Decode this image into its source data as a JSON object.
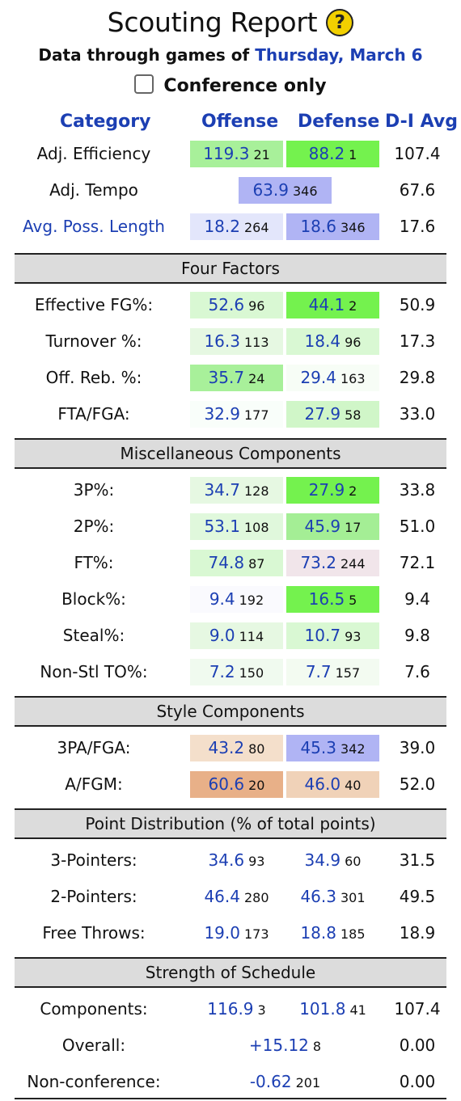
{
  "header": {
    "title": "Scouting Report",
    "help_glyph": "?",
    "subtitle_prefix": "Data through games of",
    "subtitle_date": "Thursday, March 6",
    "conference_only_label": "Conference only",
    "conference_only_checked": false
  },
  "columns": {
    "category": "Category",
    "offense": "Offense",
    "defense": "Defense",
    "avg": "D-I Avg"
  },
  "top_rows": [
    {
      "label": "Adj. Efficiency",
      "link": false,
      "o_val": "119.3",
      "o_rank": "21",
      "o_bg": "#a8f09a",
      "d_val": "88.2",
      "d_rank": "1",
      "d_bg": "#74f24e",
      "avg": "107.4"
    },
    {
      "label": "Adj. Tempo",
      "link": false,
      "single": true,
      "val": "63.9",
      "rank": "346",
      "bg": "#b0b4f4",
      "avg": "67.6"
    },
    {
      "label": "Avg. Poss. Length",
      "link": true,
      "o_val": "18.2",
      "o_rank": "264",
      "o_bg": "#e3e6fb",
      "d_val": "18.6",
      "d_rank": "346",
      "d_bg": "#b0b4f4",
      "avg": "17.6"
    }
  ],
  "sections": [
    {
      "title": "Four Factors",
      "rows": [
        {
          "label": "Effective FG%:",
          "o_val": "52.6",
          "o_rank": "96",
          "o_bg": "#d9f8d3",
          "d_val": "44.1",
          "d_rank": "2",
          "d_bg": "#74f24e",
          "avg": "50.9"
        },
        {
          "label": "Turnover %:",
          "o_val": "16.3",
          "o_rank": "113",
          "o_bg": "#e6f8e2",
          "d_val": "18.4",
          "d_rank": "96",
          "d_bg": "#d9f8d3",
          "avg": "17.3"
        },
        {
          "label": "Off. Reb. %:",
          "o_val": "35.7",
          "o_rank": "24",
          "o_bg": "#a8f09a",
          "d_val": "29.4",
          "d_rank": "163",
          "d_bg": "#f7fdf6",
          "avg": "29.8"
        },
        {
          "label": "FTA/FGA:",
          "o_val": "32.9",
          "o_rank": "177",
          "o_bg": "#f9fefa",
          "d_val": "27.9",
          "d_rank": "58",
          "d_bg": "#d0f6c8",
          "avg": "33.0"
        }
      ]
    },
    {
      "title": "Miscellaneous Components",
      "rows": [
        {
          "label": "3P%:",
          "o_val": "34.7",
          "o_rank": "128",
          "o_bg": "#e6f8e2",
          "d_val": "27.9",
          "d_rank": "2",
          "d_bg": "#74f24e",
          "avg": "33.8"
        },
        {
          "label": "2P%:",
          "o_val": "53.1",
          "o_rank": "108",
          "o_bg": "#e0f8dc",
          "d_val": "45.9",
          "d_rank": "17",
          "d_bg": "#a4ee95",
          "avg": "51.0"
        },
        {
          "label": "FT%:",
          "o_val": "74.8",
          "o_rank": "87",
          "o_bg": "#d9f8d3",
          "d_val": "73.2",
          "d_rank": "244",
          "d_bg": "#f1e5ea",
          "avg": "72.1"
        },
        {
          "label": "Block%:",
          "o_val": "9.4",
          "o_rank": "192",
          "o_bg": "#fafafe",
          "d_val": "16.5",
          "d_rank": "5",
          "d_bg": "#74f24e",
          "avg": "9.4"
        },
        {
          "label": "Steal%:",
          "o_val": "9.0",
          "o_rank": "114",
          "o_bg": "#e6f8e2",
          "d_val": "10.7",
          "d_rank": "93",
          "d_bg": "#d9f8d3",
          "avg": "9.8"
        },
        {
          "label": "Non-Stl TO%:",
          "o_val": "7.2",
          "o_rank": "150",
          "o_bg": "#f0faef",
          "d_val": "7.7",
          "d_rank": "157",
          "d_bg": "#f3fbf1",
          "avg": "7.6"
        }
      ]
    },
    {
      "title": "Style Components",
      "rows": [
        {
          "label": "3PA/FGA:",
          "o_val": "43.2",
          "o_rank": "80",
          "o_bg": "#f4dfcb",
          "d_val": "45.3",
          "d_rank": "342",
          "d_bg": "#b0b4f4",
          "avg": "39.0"
        },
        {
          "label": "A/FGM:",
          "o_val": "60.6",
          "o_rank": "20",
          "o_bg": "#e8b088",
          "d_val": "46.0",
          "d_rank": "40",
          "d_bg": "#f0d2b8",
          "avg": "52.0"
        }
      ]
    },
    {
      "title": "Point Distribution (% of total points)",
      "rows": [
        {
          "label": "3-Pointers:",
          "o_val": "34.6",
          "o_rank": "93",
          "o_bg": "transparent",
          "d_val": "34.9",
          "d_rank": "60",
          "d_bg": "transparent",
          "avg": "31.5"
        },
        {
          "label": "2-Pointers:",
          "o_val": "46.4",
          "o_rank": "280",
          "o_bg": "transparent",
          "d_val": "46.3",
          "d_rank": "301",
          "d_bg": "transparent",
          "avg": "49.5"
        },
        {
          "label": "Free Throws:",
          "o_val": "19.0",
          "o_rank": "173",
          "o_bg": "transparent",
          "d_val": "18.8",
          "d_rank": "185",
          "d_bg": "transparent",
          "avg": "18.9"
        }
      ]
    },
    {
      "title": "Strength of Schedule",
      "rows": [
        {
          "label": "Components:",
          "o_val": "116.9",
          "o_rank": "3",
          "o_bg": "transparent",
          "d_val": "101.8",
          "d_rank": "41",
          "d_bg": "transparent",
          "avg": "107.4"
        },
        {
          "label": "Overall:",
          "single": true,
          "val": "+15.12",
          "rank": "8",
          "bg": "transparent",
          "avg": "0.00"
        },
        {
          "label": "Non-conference:",
          "single": true,
          "val": "-0.62",
          "rank": "201",
          "bg": "transparent",
          "avg": "0.00"
        }
      ]
    }
  ]
}
